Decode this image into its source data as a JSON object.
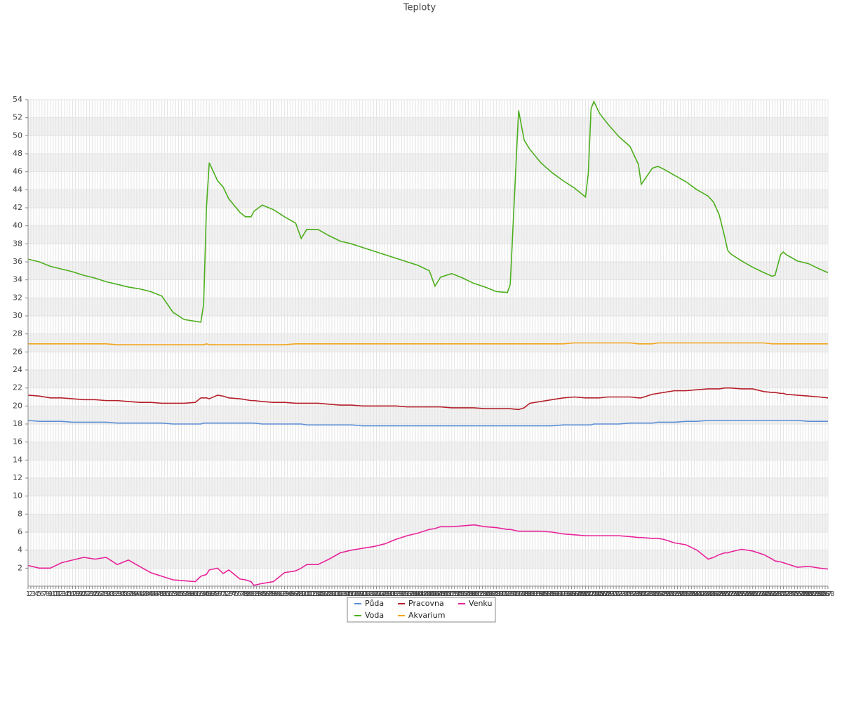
{
  "chart_data": {
    "type": "line",
    "title": "Teploty",
    "x": [
      1,
      5,
      9,
      13,
      17,
      21,
      25,
      29,
      33,
      37,
      41,
      45,
      49,
      53,
      57,
      61,
      63,
      64,
      65,
      66,
      69,
      71,
      73,
      77,
      79,
      81,
      82,
      85,
      89,
      93,
      97,
      99,
      101,
      105,
      109,
      113,
      117,
      121,
      125,
      129,
      133,
      137,
      141,
      145,
      147,
      149,
      153,
      157,
      161,
      165,
      169,
      173,
      174,
      177,
      179,
      181,
      185,
      189,
      193,
      197,
      201,
      202,
      203,
      204,
      206,
      209,
      213,
      217,
      220,
      221,
      225,
      227,
      229,
      233,
      237,
      241,
      245,
      247,
      249,
      251,
      252,
      253,
      257,
      261,
      265,
      268,
      269,
      271,
      272,
      273,
      277,
      281,
      285,
      288
    ],
    "series": [
      {
        "name": "Půda",
        "color": "#5b8fd6",
        "values": [
          18.4,
          18.3,
          18.3,
          18.3,
          18.2,
          18.2,
          18.2,
          18.2,
          18.1,
          18.1,
          18.1,
          18.1,
          18.1,
          18.0,
          18.0,
          18.0,
          18.0,
          18.1,
          18.1,
          18.1,
          18.1,
          18.1,
          18.1,
          18.1,
          18.1,
          18.1,
          18.1,
          18.0,
          18.0,
          18.0,
          18.0,
          18.0,
          17.9,
          17.9,
          17.9,
          17.9,
          17.9,
          17.8,
          17.8,
          17.8,
          17.8,
          17.8,
          17.8,
          17.8,
          17.8,
          17.8,
          17.8,
          17.8,
          17.8,
          17.8,
          17.8,
          17.8,
          17.8,
          17.8,
          17.8,
          17.8,
          17.8,
          17.8,
          17.9,
          17.9,
          17.9,
          17.9,
          17.9,
          18.0,
          18.0,
          18.0,
          18.0,
          18.1,
          18.1,
          18.1,
          18.1,
          18.2,
          18.2,
          18.2,
          18.3,
          18.3,
          18.4,
          18.4,
          18.4,
          18.4,
          18.4,
          18.4,
          18.4,
          18.4,
          18.4,
          18.4,
          18.4,
          18.4,
          18.4,
          18.4,
          18.4,
          18.3,
          18.3,
          18.3
        ]
      },
      {
        "name": "Voda",
        "color": "#4cae1c",
        "values": [
          36.3,
          36.0,
          35.5,
          35.2,
          34.9,
          34.5,
          34.2,
          33.8,
          33.5,
          33.2,
          33.0,
          32.7,
          32.2,
          30.4,
          29.6,
          29.4,
          29.3,
          31.3,
          42.0,
          47.0,
          45.0,
          44.3,
          43.0,
          41.5,
          41.0,
          41.0,
          41.6,
          42.3,
          41.8,
          41.0,
          40.3,
          38.6,
          39.6,
          39.6,
          38.9,
          38.3,
          38.0,
          37.6,
          37.2,
          36.8,
          36.4,
          36.0,
          35.6,
          35.0,
          33.3,
          34.3,
          34.7,
          34.2,
          33.6,
          33.2,
          32.7,
          32.6,
          33.5,
          52.8,
          49.5,
          48.5,
          47.0,
          45.9,
          45.0,
          44.2,
          43.2,
          45.8,
          53.0,
          53.8,
          52.5,
          51.3,
          49.9,
          48.8,
          46.8,
          44.6,
          46.4,
          46.6,
          46.3,
          45.6,
          44.9,
          44.0,
          43.3,
          42.6,
          41.2,
          38.7,
          37.3,
          36.9,
          36.1,
          35.4,
          34.8,
          34.4,
          34.5,
          36.8,
          37.1,
          36.8,
          36.1,
          35.8,
          35.2,
          34.8
        ]
      },
      {
        "name": "Pracovna",
        "color": "#b5202a",
        "values": [
          21.2,
          21.1,
          20.9,
          20.9,
          20.8,
          20.7,
          20.7,
          20.6,
          20.6,
          20.5,
          20.4,
          20.4,
          20.3,
          20.3,
          20.3,
          20.4,
          20.9,
          20.9,
          20.9,
          20.8,
          21.2,
          21.1,
          20.9,
          20.8,
          20.7,
          20.6,
          20.6,
          20.5,
          20.4,
          20.4,
          20.3,
          20.3,
          20.3,
          20.3,
          20.2,
          20.1,
          20.1,
          20.0,
          20.0,
          20.0,
          20.0,
          19.9,
          19.9,
          19.9,
          19.9,
          19.9,
          19.8,
          19.8,
          19.8,
          19.7,
          19.7,
          19.7,
          19.7,
          19.6,
          19.8,
          20.3,
          20.5,
          20.7,
          20.9,
          21.0,
          20.9,
          20.9,
          20.9,
          20.9,
          20.9,
          21.0,
          21.0,
          21.0,
          20.9,
          20.9,
          21.3,
          21.4,
          21.5,
          21.7,
          21.7,
          21.8,
          21.9,
          21.9,
          21.9,
          22.0,
          22.0,
          22.0,
          21.9,
          21.9,
          21.6,
          21.5,
          21.5,
          21.4,
          21.4,
          21.3,
          21.2,
          21.1,
          21.0,
          20.9
        ]
      },
      {
        "name": "Akvarium",
        "color": "#f2a51a",
        "values": [
          26.9,
          26.9,
          26.9,
          26.9,
          26.9,
          26.9,
          26.9,
          26.9,
          26.8,
          26.8,
          26.8,
          26.8,
          26.8,
          26.8,
          26.8,
          26.8,
          26.8,
          26.8,
          26.9,
          26.8,
          26.8,
          26.8,
          26.8,
          26.8,
          26.8,
          26.8,
          26.8,
          26.8,
          26.8,
          26.8,
          26.9,
          26.9,
          26.9,
          26.9,
          26.9,
          26.9,
          26.9,
          26.9,
          26.9,
          26.9,
          26.9,
          26.9,
          26.9,
          26.9,
          26.9,
          26.9,
          26.9,
          26.9,
          26.9,
          26.9,
          26.9,
          26.9,
          26.9,
          26.9,
          26.9,
          26.9,
          26.9,
          26.9,
          26.9,
          27.0,
          27.0,
          27.0,
          27.0,
          27.0,
          27.0,
          27.0,
          27.0,
          27.0,
          26.9,
          26.9,
          26.9,
          27.0,
          27.0,
          27.0,
          27.0,
          27.0,
          27.0,
          27.0,
          27.0,
          27.0,
          27.0,
          27.0,
          27.0,
          27.0,
          27.0,
          26.9,
          26.9,
          26.9,
          26.9,
          26.9,
          26.9,
          26.9,
          26.9,
          26.9
        ]
      },
      {
        "name": "Venku",
        "color": "#e8239a",
        "values": [
          2.3,
          2.0,
          2.0,
          2.6,
          2.9,
          3.2,
          3.0,
          3.2,
          2.4,
          2.9,
          2.2,
          1.5,
          1.1,
          0.7,
          0.6,
          0.5,
          1.1,
          1.2,
          1.3,
          1.8,
          2.0,
          1.4,
          1.8,
          0.8,
          0.7,
          0.5,
          0.1,
          0.3,
          0.5,
          1.5,
          1.7,
          2.0,
          2.4,
          2.4,
          3.0,
          3.7,
          4.0,
          4.2,
          4.4,
          4.7,
          5.2,
          5.6,
          5.9,
          6.3,
          6.4,
          6.6,
          6.6,
          6.7,
          6.8,
          6.6,
          6.5,
          6.3,
          6.3,
          6.1,
          6.1,
          6.1,
          6.1,
          6.0,
          5.8,
          5.7,
          5.6,
          5.6,
          5.6,
          5.6,
          5.6,
          5.6,
          5.6,
          5.5,
          5.4,
          5.4,
          5.3,
          5.3,
          5.2,
          4.8,
          4.6,
          4.0,
          3.0,
          3.2,
          3.5,
          3.7,
          3.7,
          3.8,
          4.1,
          3.9,
          3.5,
          3.0,
          2.8,
          2.7,
          2.6,
          2.5,
          2.1,
          2.2,
          2.0,
          1.9
        ]
      }
    ],
    "xlim": [
      1,
      288
    ],
    "xticks": [
      1,
      2,
      3,
      4,
      5,
      6,
      7,
      8,
      9,
      10,
      11,
      12,
      13,
      14,
      15,
      16,
      17,
      18,
      19,
      20,
      21,
      22,
      23,
      24,
      25,
      26,
      27,
      28,
      29,
      30,
      31,
      32,
      33,
      34,
      35,
      36,
      37,
      38,
      39,
      40,
      41,
      42,
      43,
      44,
      45,
      46,
      47,
      48,
      49,
      50,
      51,
      52,
      53,
      54,
      55,
      56,
      57,
      58,
      59,
      60,
      61,
      62,
      63,
      64,
      65,
      66,
      67,
      68,
      69,
      70,
      71,
      72,
      73,
      74,
      75,
      76,
      77,
      78,
      79,
      80,
      81,
      82,
      83,
      84,
      85,
      86,
      87,
      88,
      89,
      90,
      91,
      92,
      93,
      94,
      95,
      96,
      97,
      98,
      99,
      100,
      101,
      102,
      103,
      104,
      105,
      106,
      107,
      108,
      109,
      110,
      111,
      112,
      113,
      114,
      115,
      116,
      117,
      118,
      119,
      120,
      121,
      122,
      123,
      124,
      125,
      126,
      127,
      128,
      129,
      130,
      131,
      132,
      133,
      134,
      135,
      136,
      137,
      138,
      139,
      140,
      141,
      142,
      143,
      144,
      145,
      146,
      147,
      148,
      149,
      150,
      151,
      152,
      153,
      154,
      155,
      156,
      157,
      158,
      159,
      160,
      161,
      162,
      163,
      164,
      165,
      166,
      167,
      168,
      169,
      170,
      171,
      172,
      173,
      174,
      175,
      176,
      177,
      178,
      179,
      180,
      181,
      182,
      183,
      184,
      185,
      186,
      187,
      188,
      189,
      190,
      191,
      192,
      193,
      194,
      195,
      196,
      197,
      198,
      199,
      200,
      201,
      202,
      203,
      204,
      205,
      206,
      207,
      208,
      209,
      210,
      211,
      212,
      213,
      214,
      215,
      216,
      217,
      218,
      219,
      220,
      221,
      222,
      223,
      224,
      225,
      226,
      227,
      228,
      229,
      230,
      231,
      232,
      233,
      234,
      235,
      236,
      237,
      238,
      239,
      240,
      241,
      242,
      243,
      244,
      245,
      246,
      247,
      248,
      249,
      250,
      251,
      252,
      253,
      254,
      255,
      256,
      257,
      258,
      259,
      260,
      261,
      262,
      263,
      264,
      265,
      266,
      267,
      268,
      269,
      270,
      271,
      272,
      273,
      274,
      275,
      276,
      277,
      278,
      279,
      280,
      281,
      282,
      283,
      284,
      285,
      286,
      287,
      288
    ],
    "ylim": [
      0,
      54
    ],
    "yticks": [
      2,
      4,
      6,
      8,
      10,
      12,
      14,
      16,
      18,
      20,
      22,
      24,
      26,
      28,
      30,
      32,
      34,
      36,
      38,
      40,
      42,
      44,
      46,
      48,
      50,
      52,
      54
    ],
    "grid": true,
    "legend": "bottom"
  }
}
